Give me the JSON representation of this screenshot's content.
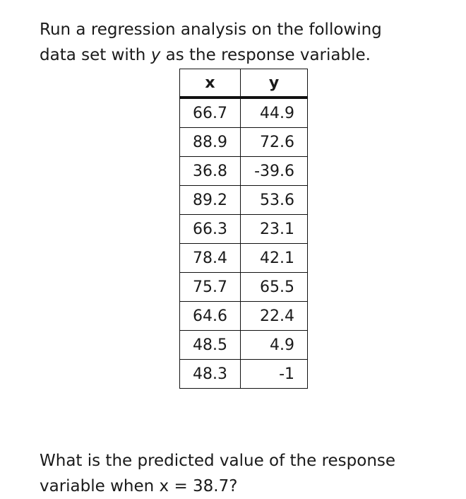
{
  "intro": {
    "line1": "Run a regression analysis on the following",
    "line2_before": "data set with ",
    "line2_var": "y",
    "line2_after": " as the response variable."
  },
  "table": {
    "headers": [
      "x",
      "y"
    ],
    "rows": [
      [
        "66.7",
        "44.9"
      ],
      [
        "88.9",
        "72.6"
      ],
      [
        "36.8",
        "-39.6"
      ],
      [
        "89.2",
        "53.6"
      ],
      [
        "66.3",
        "23.1"
      ],
      [
        "78.4",
        "42.1"
      ],
      [
        "75.7",
        "65.5"
      ],
      [
        "64.6",
        "22.4"
      ],
      [
        "48.5",
        "4.9"
      ],
      [
        "48.3",
        "-1"
      ]
    ]
  },
  "question": {
    "line1": "What is the predicted value of the response",
    "line2": "variable when x = 38.7?"
  }
}
